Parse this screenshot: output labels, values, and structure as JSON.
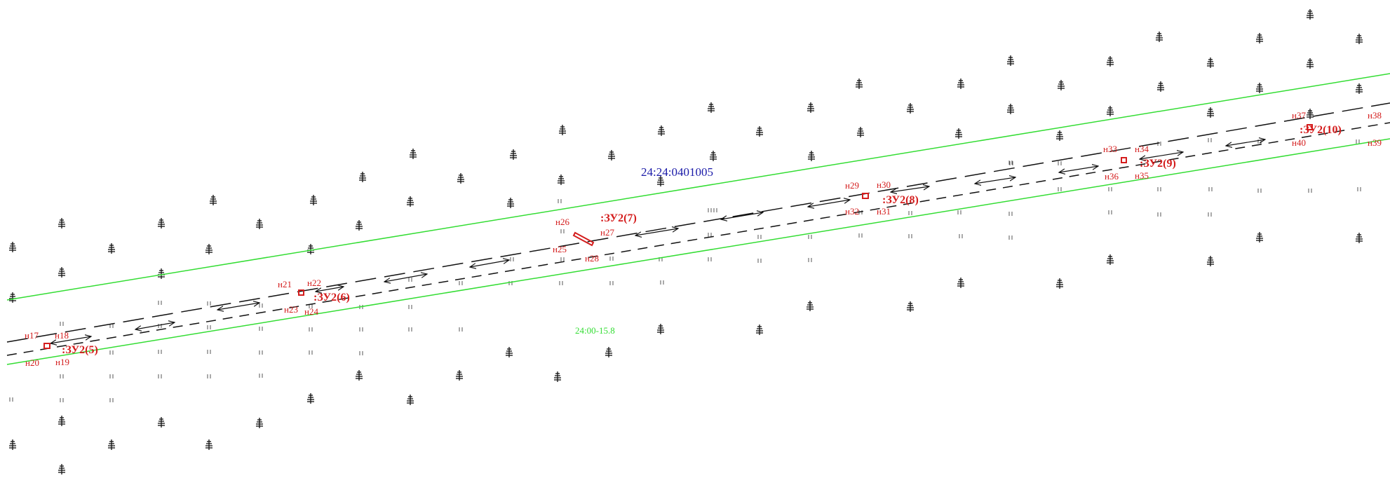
{
  "map": {
    "cadastral_quarter": "24:24:0401005",
    "zone_label": "24:00-15.8",
    "parcels": [
      {
        "id": "zu5",
        "label": ":ЗУ2(5)"
      },
      {
        "id": "zu6",
        "label": ":ЗУ2(6)"
      },
      {
        "id": "zu7",
        "label": ":ЗУ2(7)"
      },
      {
        "id": "zu8",
        "label": ":ЗУ2(8)"
      },
      {
        "id": "zu9",
        "label": ":ЗУ2(9)"
      },
      {
        "id": "zu10",
        "label": ":ЗУ2(10)"
      }
    ],
    "points": [
      "н17",
      "н18",
      "н19",
      "н20",
      "н21",
      "н22",
      "н23",
      "н24",
      "н25",
      "н26",
      "н27",
      "н28",
      "н29",
      "н30",
      "н31",
      "н32",
      "н33",
      "н34",
      "н35",
      "н36",
      "н37",
      "н38",
      "н39",
      "н40"
    ],
    "colors": {
      "zone_boundary": "#33dd33",
      "parcel": "#d41d1d",
      "cadastral_label": "#1a1aa8",
      "line": "#111111"
    },
    "symbols": [
      "tree-symbol",
      "grass-symbol",
      "two-way-arrow",
      "parcel-marker"
    ]
  }
}
